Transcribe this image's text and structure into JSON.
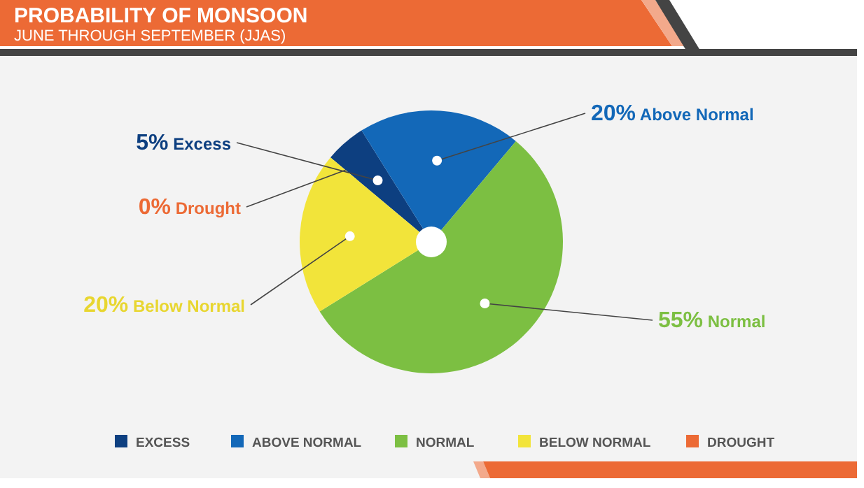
{
  "chart_data": {
    "type": "pie",
    "title": "PROBABILITY OF MONSOON",
    "subtitle": "JUNE THROUGH SEPTEMBER (JJAS)",
    "categories": [
      "EXCESS",
      "ABOVE NORMAL",
      "NORMAL",
      "BELOW NORMAL",
      "DROUGHT"
    ],
    "values": [
      5,
      20,
      55,
      20,
      0
    ],
    "colors": [
      "#0d3f80",
      "#1368b8",
      "#7cbf42",
      "#f2e43a",
      "#ec6a35"
    ],
    "value_labels": [
      "5% Excess",
      "20% Above Normal",
      "55% Normal",
      "20% Below Normal",
      "0% Drought"
    ],
    "legend": "bottom"
  }
}
